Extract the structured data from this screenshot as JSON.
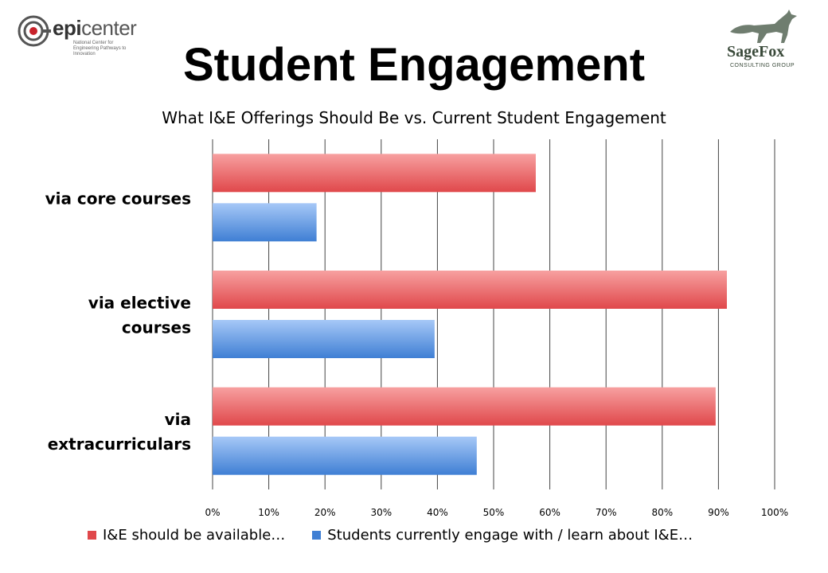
{
  "logos": {
    "left": {
      "word_a": "epi",
      "word_b": "center",
      "tagline_1": "National Center for",
      "tagline_2": "Engineering Pathways to Innovation"
    },
    "right": {
      "name": "SageFox",
      "subtitle": "CONSULTING GROUP"
    }
  },
  "slide_title": "Student Engagement",
  "colors": {
    "series_1": "#e0484b",
    "series_1_light": "#f7a0a0",
    "series_2": "#3f7fd4",
    "series_2_light": "#a6c8f7",
    "grid": "#444444"
  },
  "chart_data": {
    "type": "bar",
    "orientation": "horizontal",
    "title": "What I&E Offerings Should Be vs. Current Student Engagement",
    "categories": [
      "via core courses",
      "via elective courses",
      "via extracurriculars"
    ],
    "category_lines": [
      [
        "via core courses"
      ],
      [
        "via elective",
        "courses"
      ],
      [
        "via",
        "extracurriculars"
      ]
    ],
    "series": [
      {
        "name": "I&E should be available…",
        "values": [
          57.5,
          91.5,
          89.5
        ]
      },
      {
        "name": "Students currently engage with / learn about I&E…",
        "values": [
          18.5,
          39.5,
          47
        ]
      }
    ],
    "xlim": [
      0,
      100
    ],
    "x_ticks": [
      "0%",
      "10%",
      "20%",
      "30%",
      "40%",
      "50%",
      "60%",
      "70%",
      "80%",
      "90%",
      "100%"
    ],
    "grid": true,
    "legend_position": "bottom"
  }
}
